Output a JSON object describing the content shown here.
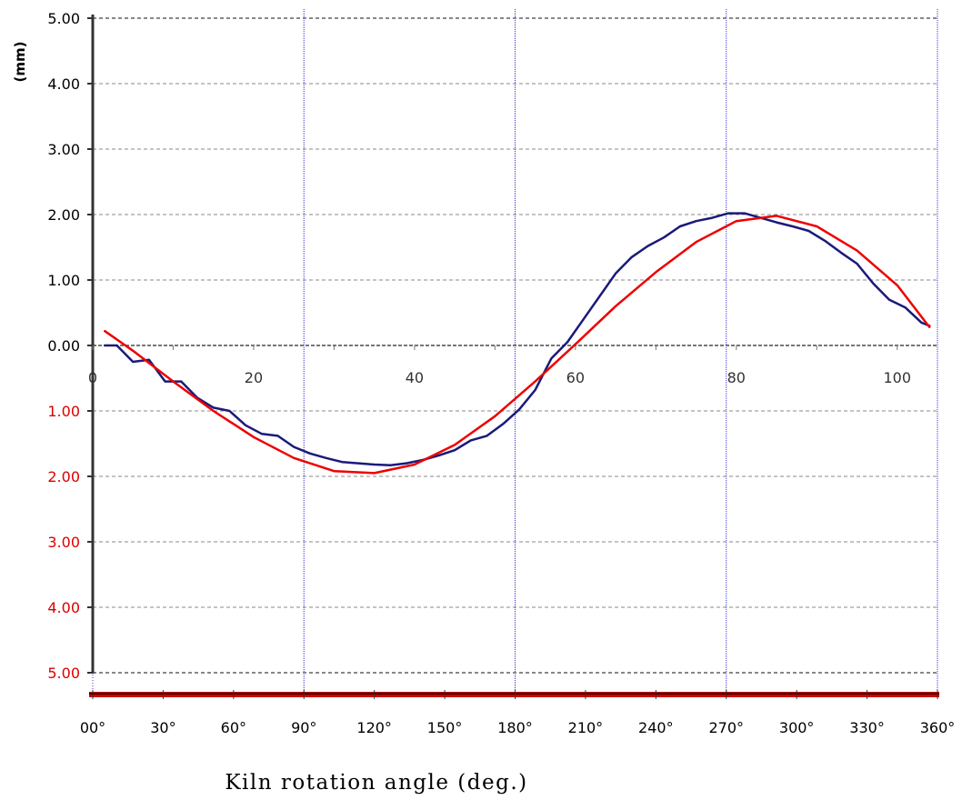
{
  "chart_data": {
    "type": "line",
    "xlabel": "Kiln rotation angle (deg.)",
    "ylabel": "(mm)",
    "y_tick_labels_upper": [
      "5.00",
      "4.00",
      "3.00",
      "2.00",
      "1.00",
      "0.00"
    ],
    "y_tick_labels_lower": [
      "1.00",
      "2.00",
      "3.00",
      "4.00",
      "5.00"
    ],
    "ylim": [
      -5,
      5
    ],
    "x_index_ticks": [
      "0",
      "20",
      "40",
      "60",
      "80",
      "100"
    ],
    "x_index_range": [
      0,
      105
    ],
    "x_angle_ticks": [
      "00°",
      "30°",
      "60°",
      "90°",
      "120°",
      "150°",
      "180°",
      "210°",
      "240°",
      "270°",
      "300°",
      "330°",
      "360°"
    ],
    "x_angle_range": [
      0,
      360
    ],
    "grid": true,
    "colors": {
      "measured": "#1a1a7a",
      "fitted": "#ee0000",
      "negative_labels": "#dd0000",
      "positive_labels": "#000000",
      "axis": "#333333",
      "grid_horizontal": "#888888",
      "grid_vertical": "#3333cc",
      "baseline_bar": "#cc0000"
    },
    "series": [
      {
        "key": "measured",
        "x": [
          1.5,
          3,
          5,
          7,
          9,
          11,
          13,
          15,
          17,
          19,
          21,
          23,
          25,
          27,
          29,
          31,
          33,
          35,
          37,
          39,
          41,
          43,
          45,
          47,
          49,
          51,
          53,
          55,
          57,
          59,
          61,
          63,
          65,
          67,
          69,
          71,
          73,
          75,
          77,
          79,
          81,
          83,
          85,
          87,
          89,
          91,
          93,
          95,
          97,
          99,
          101,
          103,
          104
        ],
        "y": [
          0.0,
          0.0,
          -0.25,
          -0.22,
          -0.55,
          -0.55,
          -0.8,
          -0.95,
          -1.0,
          -1.22,
          -1.35,
          -1.38,
          -1.55,
          -1.65,
          -1.72,
          -1.78,
          -1.8,
          -1.82,
          -1.83,
          -1.8,
          -1.75,
          -1.68,
          -1.6,
          -1.45,
          -1.38,
          -1.2,
          -0.98,
          -0.68,
          -0.2,
          0.05,
          0.4,
          0.75,
          1.1,
          1.35,
          1.52,
          1.65,
          1.82,
          1.9,
          1.95,
          2.02,
          2.02,
          1.95,
          1.88,
          1.82,
          1.75,
          1.6,
          1.42,
          1.25,
          0.95,
          0.7,
          0.58,
          0.35,
          0.3
        ]
      },
      {
        "key": "fitted",
        "x": [
          1.5,
          5,
          10,
          15,
          20,
          25,
          30,
          35,
          40,
          45,
          50,
          55,
          60,
          65,
          70,
          75,
          80,
          85,
          90,
          95,
          100,
          104
        ],
        "y": [
          0.22,
          -0.08,
          -0.55,
          -1.0,
          -1.4,
          -1.72,
          -1.92,
          -1.95,
          -1.82,
          -1.52,
          -1.08,
          -0.55,
          0.02,
          0.6,
          1.12,
          1.58,
          1.9,
          1.98,
          1.82,
          1.45,
          0.92,
          0.28
        ]
      }
    ]
  }
}
